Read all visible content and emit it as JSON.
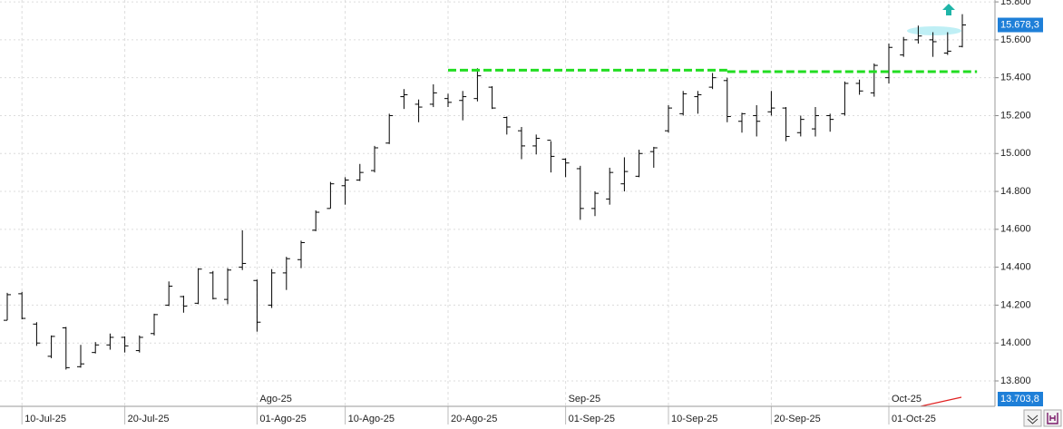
{
  "chart_data": {
    "type": "ohlc",
    "color": "#000000",
    "categories": [
      null,
      "10-Jul-25",
      null,
      null,
      null,
      null,
      null,
      null,
      "20-Jul-25",
      null,
      null,
      null,
      null,
      null,
      null,
      null,
      null,
      "01-Ago-25",
      null,
      null,
      null,
      null,
      null,
      "10-Ago-25",
      null,
      null,
      null,
      null,
      null,
      null,
      "20-Ago-25",
      null,
      null,
      null,
      null,
      null,
      null,
      null,
      "01-Sep-25",
      null,
      null,
      null,
      null,
      null,
      null,
      "10-Sep-25",
      null,
      null,
      null,
      null,
      null,
      null,
      "20-Sep-25",
      null,
      null,
      null,
      null,
      null,
      null,
      null,
      "01-Oct-25",
      null,
      null,
      null,
      null,
      null
    ],
    "month_labels": [
      null,
      null,
      null,
      null,
      null,
      null,
      null,
      null,
      null,
      null,
      null,
      null,
      null,
      null,
      null,
      null,
      null,
      "Ago-25",
      null,
      null,
      null,
      null,
      null,
      null,
      null,
      null,
      null,
      null,
      null,
      null,
      null,
      null,
      null,
      null,
      null,
      null,
      null,
      null,
      "Sep-25",
      null,
      null,
      null,
      null,
      null,
      null,
      null,
      null,
      null,
      null,
      null,
      null,
      null,
      null,
      null,
      null,
      null,
      null,
      null,
      null,
      null,
      "Oct-25",
      null,
      null,
      null,
      null,
      null
    ],
    "open": [
      14120,
      14260,
      14100,
      13930,
      14080,
      13875,
      13950,
      13990,
      14030,
      13960,
      14050,
      14200,
      14245,
      14210,
      14370,
      14230,
      14400,
      14330,
      14200,
      14370,
      14440,
      14595,
      14710,
      14830,
      14860,
      14910,
      15055,
      15300,
      15260,
      15260,
      15290,
      15280,
      15290,
      15350,
      15190,
      15120,
      15040,
      15070,
      14970,
      14920,
      14710,
      14760,
      14840,
      14880,
      15010,
      15120,
      15210,
      15300,
      15350,
      15385,
      15170,
      15200,
      15220,
      15240,
      15110,
      15130,
      15200,
      15210,
      15370,
      15320,
      15400,
      15520,
      15600,
      15600,
      15530,
      15565
    ],
    "high": [
      14265,
      14270,
      14110,
      14040,
      14085,
      13990,
      14005,
      14050,
      14035,
      14040,
      14155,
      14325,
      14250,
      14395,
      14380,
      14395,
      14595,
      14335,
      14390,
      14455,
      14540,
      14700,
      14850,
      14875,
      14945,
      15040,
      15210,
      15340,
      15285,
      15365,
      15315,
      15330,
      15450,
      15355,
      15195,
      15140,
      15100,
      15065,
      14975,
      14935,
      14800,
      14925,
      14980,
      15020,
      15035,
      15255,
      15330,
      15330,
      15425,
      15400,
      15215,
      15255,
      15330,
      15245,
      15200,
      15245,
      15210,
      15380,
      15390,
      15475,
      15580,
      15615,
      15675,
      15640,
      15640,
      15735
    ],
    "low": [
      14120,
      14125,
      13985,
      13920,
      13860,
      13870,
      13945,
      13965,
      13950,
      13950,
      14040,
      14195,
      14160,
      14205,
      14230,
      14205,
      14385,
      14060,
      14185,
      14280,
      14395,
      14590,
      14710,
      14730,
      14855,
      14900,
      15050,
      15235,
      15165,
      15245,
      15245,
      15175,
      15275,
      15235,
      15100,
      14970,
      14995,
      14900,
      14875,
      14650,
      14670,
      14730,
      14800,
      14875,
      14925,
      15110,
      15200,
      15210,
      15340,
      15165,
      15110,
      15090,
      15200,
      15065,
      15090,
      15090,
      15115,
      15200,
      15310,
      15300,
      15370,
      15510,
      15580,
      15510,
      15520,
      15560
    ],
    "close": [
      14255,
      14130,
      14000,
      14035,
      13870,
      13890,
      13990,
      14030,
      13985,
      14030,
      14150,
      14300,
      14195,
      14390,
      14235,
      14385,
      14420,
      14110,
      14370,
      14445,
      14530,
      14690,
      14840,
      14860,
      14900,
      15030,
      15200,
      15310,
      15245,
      15320,
      15270,
      15300,
      15410,
      15240,
      15140,
      15040,
      15080,
      14985,
      14950,
      14710,
      14790,
      14900,
      14905,
      15000,
      15030,
      15240,
      15315,
      15310,
      15400,
      15195,
      15210,
      15170,
      15240,
      15090,
      15180,
      15200,
      15180,
      15370,
      15330,
      15465,
      15560,
      15600,
      15620,
      15590,
      15540,
      15678.3
    ],
    "ylim": [
      13666,
      15810
    ],
    "yticks": [
      {
        "value": 13800,
        "label": "13.800"
      },
      {
        "value": 14000,
        "label": "14.000"
      },
      {
        "value": 14200,
        "label": "14.200"
      },
      {
        "value": 14400,
        "label": "14.400"
      },
      {
        "value": 14600,
        "label": "14.600"
      },
      {
        "value": 14800,
        "label": "14.800"
      },
      {
        "value": 15000,
        "label": "15.000"
      },
      {
        "value": 15200,
        "label": "15.200"
      },
      {
        "value": 15400,
        "label": "15.400"
      },
      {
        "value": 15600,
        "label": "15.600"
      },
      {
        "value": 15800,
        "label": "15.800"
      }
    ],
    "grid": true,
    "levels": [
      {
        "value": 15440,
        "from": 30,
        "to": 49,
        "color": "#22dd22"
      },
      {
        "value": 15432,
        "from": 49,
        "to": 66,
        "color": "#22dd22"
      }
    ],
    "markers": [
      {
        "value": 15678.3,
        "label": "15.678,3",
        "color": "#1e7fd8"
      },
      {
        "value": 13703.8,
        "label": "13.703,8",
        "color": "#1e7fd8"
      }
    ]
  }
}
